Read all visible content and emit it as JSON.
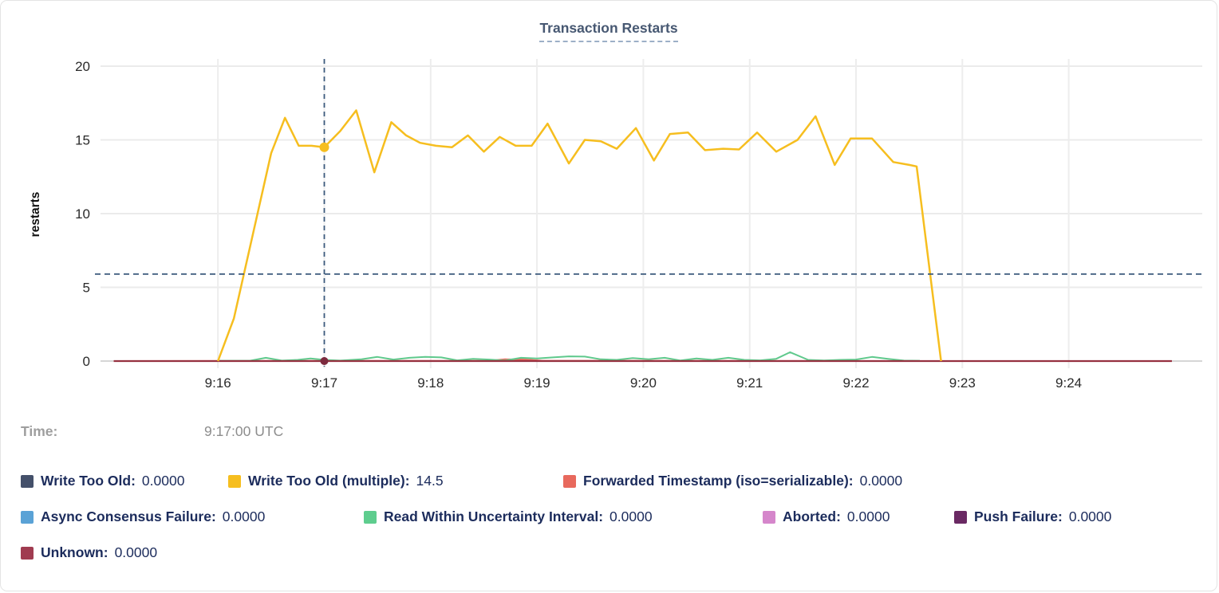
{
  "header": {
    "title": "Transaction Restarts"
  },
  "tooltip": {
    "time_label": "Time:",
    "time_value": "9:17:00 UTC"
  },
  "legend": {
    "rows": [
      [
        {
          "label": "Write Too Old:",
          "value": "0.0000",
          "color": "#44506a"
        },
        {
          "label": "Write Too Old (multiple):",
          "value": "14.5",
          "color": "#f6be1f"
        },
        {
          "label": "Forwarded Timestamp (iso=serializable):",
          "value": "0.0000",
          "color": "#e8695d"
        }
      ],
      [
        {
          "label": "Async Consensus Failure:",
          "value": "0.0000",
          "color": "#5aa2d6"
        },
        {
          "label": "Read Within Uncertainty Interval:",
          "value": "0.0000",
          "color": "#5ecd8e"
        },
        {
          "label": "Aborted:",
          "value": "0.0000",
          "color": "#d586cb"
        },
        {
          "label": "Push Failure:",
          "value": "0.0000",
          "color": "#6a2963"
        }
      ],
      [
        {
          "label": "Unknown:",
          "value": "0.0000",
          "color": "#a03b50"
        }
      ]
    ]
  },
  "chart_data": {
    "type": "line",
    "title": "Transaction Restarts",
    "xlabel": "",
    "ylabel": "restarts",
    "ylim": [
      0,
      20
    ],
    "yticks": [
      0,
      5,
      10,
      15,
      20
    ],
    "xticks": [
      "9:16",
      "9:17",
      "9:18",
      "9:19",
      "9:20",
      "9:21",
      "9:22",
      "9:23",
      "9:24"
    ],
    "x_unit_note": "x values are minutes after 9:15:00; tick 9:16 = 1.0",
    "grid": true,
    "legend_position": "bottom",
    "crosshair": {
      "t": 2.0,
      "time": "9:17:00 UTC",
      "y_value": 5.9,
      "color": "#3c5a7d"
    },
    "markers": [
      {
        "series": "Write Too Old (multiple)",
        "t": 2.0,
        "v": 14.5,
        "color": "#f6be1f",
        "r": 6
      },
      {
        "series": "Unknown",
        "t": 2.0,
        "v": 0,
        "color": "#7c2a3e",
        "r": 5
      }
    ],
    "series": [
      {
        "name": "Write Too Old",
        "color": "#44506a",
        "hover_value": "0.0000",
        "width": 1.5,
        "points": [
          [
            0.02,
            0
          ],
          [
            9.97,
            0
          ]
        ]
      },
      {
        "name": "Async Consensus Failure",
        "color": "#5aa2d6",
        "hover_value": "0.0000",
        "width": 1.5,
        "points": [
          [
            0.02,
            0
          ],
          [
            9.97,
            0
          ]
        ]
      },
      {
        "name": "Aborted",
        "color": "#d586cb",
        "hover_value": "0.0000",
        "width": 1.5,
        "points": [
          [
            0.02,
            0
          ],
          [
            9.97,
            0
          ]
        ]
      },
      {
        "name": "Push Failure",
        "color": "#6a2963",
        "hover_value": "0.0000",
        "width": 1.5,
        "points": [
          [
            0.02,
            0
          ],
          [
            9.97,
            0
          ]
        ]
      },
      {
        "name": "Forwarded Timestamp (iso=serializable)",
        "color": "#e8695d",
        "hover_value": "0.0000",
        "width": 2,
        "points": [
          [
            0.02,
            0
          ],
          [
            3.55,
            0.02
          ],
          [
            3.7,
            0.12
          ],
          [
            3.9,
            0.1
          ],
          [
            4.05,
            0.02
          ],
          [
            7.6,
            0
          ],
          [
            9.97,
            0
          ]
        ]
      },
      {
        "name": "Read Within Uncertainty Interval",
        "color": "#5fc98c",
        "hover_value": "0.0000",
        "width": 2,
        "points": [
          [
            1.0,
            0.02
          ],
          [
            1.3,
            0.02
          ],
          [
            1.45,
            0.22
          ],
          [
            1.6,
            0.03
          ],
          [
            1.75,
            0.08
          ],
          [
            1.87,
            0.18
          ],
          [
            2.0,
            0.08
          ],
          [
            2.15,
            0.03
          ],
          [
            2.35,
            0.12
          ],
          [
            2.5,
            0.28
          ],
          [
            2.65,
            0.1
          ],
          [
            2.8,
            0.22
          ],
          [
            2.95,
            0.28
          ],
          [
            3.1,
            0.25
          ],
          [
            3.25,
            0.05
          ],
          [
            3.4,
            0.15
          ],
          [
            3.55,
            0.1
          ],
          [
            3.7,
            0.03
          ],
          [
            3.85,
            0.22
          ],
          [
            4.0,
            0.18
          ],
          [
            4.15,
            0.25
          ],
          [
            4.3,
            0.32
          ],
          [
            4.45,
            0.3
          ],
          [
            4.6,
            0.12
          ],
          [
            4.75,
            0.08
          ],
          [
            4.9,
            0.2
          ],
          [
            5.05,
            0.12
          ],
          [
            5.2,
            0.22
          ],
          [
            5.35,
            0.04
          ],
          [
            5.5,
            0.18
          ],
          [
            5.65,
            0.08
          ],
          [
            5.8,
            0.22
          ],
          [
            5.95,
            0.08
          ],
          [
            6.1,
            0.05
          ],
          [
            6.25,
            0.15
          ],
          [
            6.38,
            0.6
          ],
          [
            6.55,
            0.08
          ],
          [
            6.7,
            0.04
          ],
          [
            6.85,
            0.08
          ],
          [
            7.0,
            0.1
          ],
          [
            7.15,
            0.28
          ],
          [
            7.3,
            0.15
          ],
          [
            7.45,
            0.03
          ],
          [
            7.6,
            0.02
          ]
        ]
      },
      {
        "name": "Unknown",
        "color": "#963140",
        "hover_value": "0.0000",
        "width": 2.2,
        "points": [
          [
            0.02,
            0
          ],
          [
            9.97,
            0
          ]
        ]
      },
      {
        "name": "Write Too Old (multiple)",
        "color": "#f6be1f",
        "hover_value": "14.5",
        "width": 2.5,
        "points": [
          [
            1.0,
            0
          ],
          [
            1.15,
            2.9
          ],
          [
            1.5,
            14.1
          ],
          [
            1.63,
            16.5
          ],
          [
            1.76,
            14.6
          ],
          [
            1.88,
            14.6
          ],
          [
            2.0,
            14.5
          ],
          [
            2.15,
            15.6
          ],
          [
            2.3,
            17.0
          ],
          [
            2.47,
            12.8
          ],
          [
            2.63,
            16.2
          ],
          [
            2.77,
            15.3
          ],
          [
            2.9,
            14.8
          ],
          [
            3.05,
            14.6
          ],
          [
            3.2,
            14.5
          ],
          [
            3.35,
            15.3
          ],
          [
            3.5,
            14.2
          ],
          [
            3.65,
            15.2
          ],
          [
            3.8,
            14.6
          ],
          [
            3.95,
            14.6
          ],
          [
            4.1,
            16.1
          ],
          [
            4.3,
            13.4
          ],
          [
            4.45,
            15.0
          ],
          [
            4.6,
            14.9
          ],
          [
            4.75,
            14.4
          ],
          [
            4.93,
            15.8
          ],
          [
            5.1,
            13.6
          ],
          [
            5.25,
            15.4
          ],
          [
            5.42,
            15.5
          ],
          [
            5.58,
            14.3
          ],
          [
            5.75,
            14.4
          ],
          [
            5.9,
            14.35
          ],
          [
            6.07,
            15.5
          ],
          [
            6.25,
            14.2
          ],
          [
            6.45,
            15.0
          ],
          [
            6.62,
            16.6
          ],
          [
            6.8,
            13.3
          ],
          [
            6.95,
            15.1
          ],
          [
            7.15,
            15.1
          ],
          [
            7.35,
            13.5
          ],
          [
            7.5,
            13.3
          ],
          [
            7.57,
            13.2
          ],
          [
            7.8,
            0
          ]
        ]
      }
    ],
    "style": {
      "grid_color": "#ebebeb",
      "zero_line_color": "#d6d6d6",
      "tick_text_color": "#2a2a2a",
      "accent_title_color": "#475872"
    }
  }
}
